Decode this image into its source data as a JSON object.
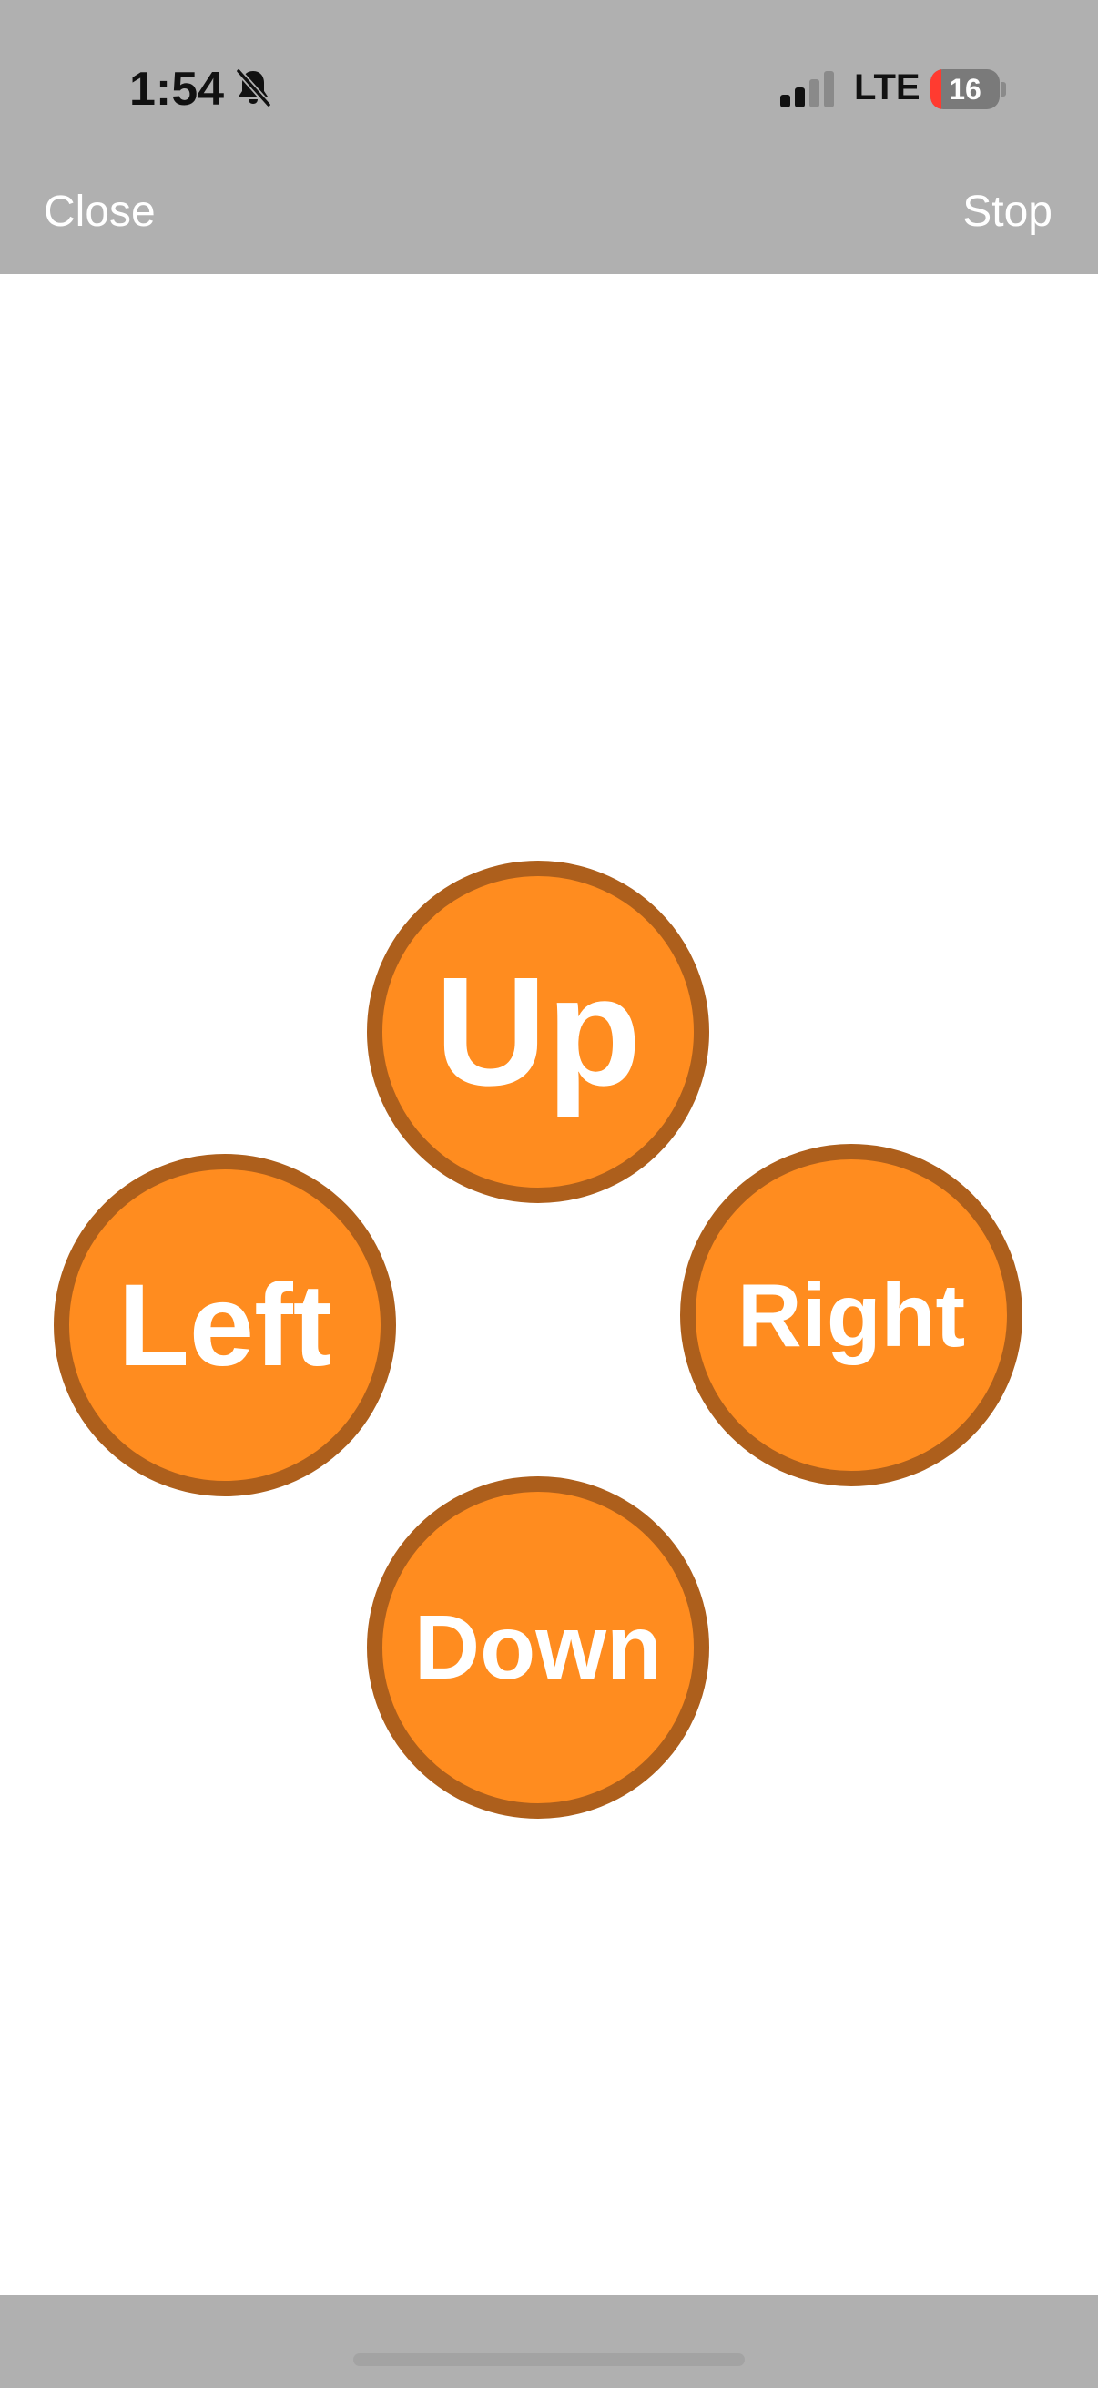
{
  "status_bar": {
    "time": "1:54",
    "network": "LTE",
    "battery_level": "16",
    "battery_fraction": 0.16,
    "signal_bars_active": 2,
    "signal_bars_total": 4,
    "icons": [
      "silent-bell-icon",
      "signal-icon",
      "battery-icon"
    ]
  },
  "nav": {
    "close_label": "Close",
    "stop_label": "Stop"
  },
  "controls": {
    "up_label": "Up",
    "left_label": "Left",
    "right_label": "Right",
    "down_label": "Down"
  },
  "colors": {
    "button_fill": "#ff8c1f",
    "button_border": "#ad5f1c",
    "bar_background": "#b0b0b0",
    "battery_low": "#ff3b30"
  }
}
